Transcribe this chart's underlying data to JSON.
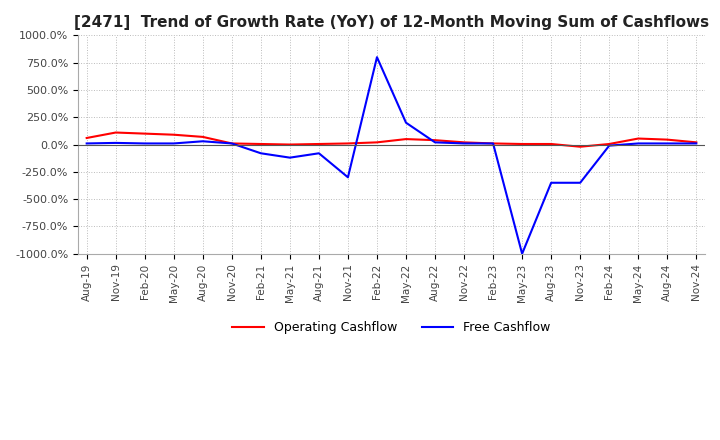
{
  "title": "[2471]  Trend of Growth Rate (YoY) of 12-Month Moving Sum of Cashflows",
  "title_fontsize": 11,
  "ylim": [
    -1000,
    1000
  ],
  "yticks": [
    1000.0,
    750.0,
    500.0,
    250.0,
    0.0,
    -250.0,
    -500.0,
    -750.0,
    -1000.0
  ],
  "ytick_labels": [
    "1000.0%",
    "750.0%",
    "500.0%",
    "250.0%",
    "0.0%",
    "-250.0%",
    "-500.0%",
    "-750.0%",
    "-1000.0%"
  ],
  "x_labels": [
    "Aug-19",
    "Nov-19",
    "Feb-20",
    "May-20",
    "Aug-20",
    "Nov-20",
    "Feb-21",
    "May-21",
    "Aug-21",
    "Nov-21",
    "Feb-22",
    "May-22",
    "Aug-22",
    "Nov-22",
    "Feb-23",
    "May-23",
    "Aug-23",
    "Nov-23",
    "Feb-24",
    "May-24",
    "Aug-24",
    "Nov-24"
  ],
  "operating_cashflow": [
    60,
    110,
    100,
    90,
    70,
    10,
    5,
    0,
    5,
    10,
    20,
    50,
    40,
    20,
    10,
    5,
    5,
    -20,
    5,
    55,
    45,
    20
  ],
  "free_cashflow": [
    10,
    15,
    10,
    10,
    30,
    10,
    -80,
    -120,
    -80,
    -300,
    800,
    200,
    20,
    10,
    10,
    -1000,
    -350,
    -350,
    -10,
    10,
    10,
    10
  ],
  "operating_color": "#ff0000",
  "free_color": "#0000ff",
  "grid_color": "#bbbbbb",
  "background_color": "#ffffff",
  "legend_ncol": 2
}
